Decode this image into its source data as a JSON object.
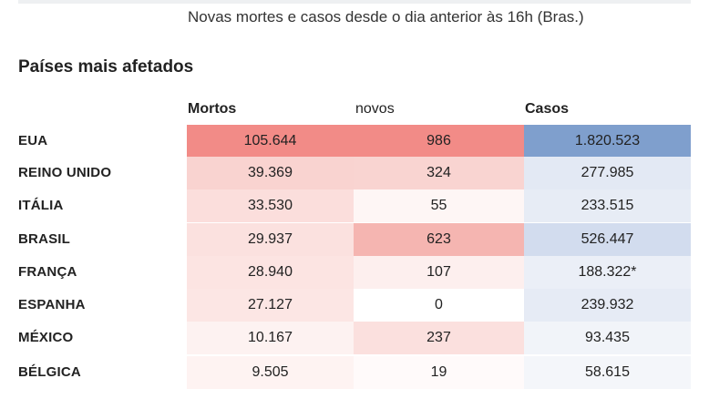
{
  "subtitle": "Novas mortes e casos desde o dia anterior às 16h (Bras.)",
  "section_title": "Países mais afetados",
  "columns": {
    "mortos": "Mortos",
    "novos": "novos",
    "casos": "Casos"
  },
  "colors": {
    "deaths_scale": "#f08080",
    "cases_scale": "#7b9ccc"
  },
  "rows": [
    {
      "country": "EUA",
      "mortos": "105.644",
      "novos": "986",
      "casos": "1.820.523",
      "mortos_bg": "#f28b87",
      "novos_bg": "#f28b87",
      "casos_bg": "#7f9fcd"
    },
    {
      "country": "REINO UNIDO",
      "mortos": "39.369",
      "novos": "324",
      "casos": "277.985",
      "mortos_bg": "#f9d3d0",
      "novos_bg": "#f9d4d1",
      "casos_bg": "#e3e9f4"
    },
    {
      "country": "ITÁLIA",
      "mortos": "33.530",
      "novos": "55",
      "casos": "233.515",
      "mortos_bg": "#fbdedc",
      "novos_bg": "#fef6f5",
      "casos_bg": "#e7ecf5"
    },
    {
      "country": "BRASIL",
      "mortos": "29.937",
      "novos": "623",
      "casos": "526.447",
      "mortos_bg": "#fbe1df",
      "novos_bg": "#f5b5b1",
      "casos_bg": "#d2dcee"
    },
    {
      "country": "FRANÇA",
      "mortos": "28.940",
      "novos": "107",
      "casos": "188.322*",
      "mortos_bg": "#fce4e2",
      "novos_bg": "#fdefee",
      "casos_bg": "#ebeff7"
    },
    {
      "country": "ESPANHA",
      "mortos": "27.127",
      "novos": "0",
      "casos": "239.932",
      "mortos_bg": "#fce6e4",
      "novos_bg": "#ffffff",
      "casos_bg": "#e6ebf5"
    },
    {
      "country": "MÉXICO",
      "mortos": "10.167",
      "novos": "237",
      "casos": "93.435",
      "mortos_bg": "#fdf2f1",
      "novos_bg": "#fbe0de",
      "casos_bg": "#f1f4f9"
    },
    {
      "country": "BÉLGICA",
      "mortos": "9.505",
      "novos": "19",
      "casos": "58.615",
      "mortos_bg": "#fef3f2",
      "novos_bg": "#fffafa",
      "casos_bg": "#f4f6fa"
    }
  ]
}
